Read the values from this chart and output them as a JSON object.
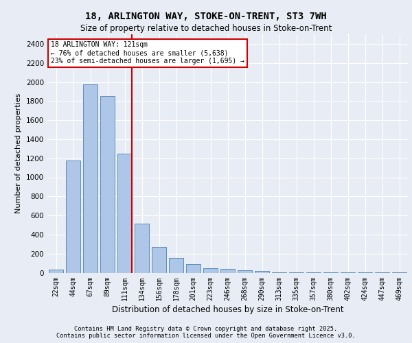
{
  "title1": "18, ARLINGTON WAY, STOKE-ON-TRENT, ST3 7WH",
  "title2": "Size of property relative to detached houses in Stoke-on-Trent",
  "xlabel": "Distribution of detached houses by size in Stoke-on-Trent",
  "ylabel": "Number of detached properties",
  "categories": [
    "22sqm",
    "44sqm",
    "67sqm",
    "89sqm",
    "111sqm",
    "134sqm",
    "156sqm",
    "178sqm",
    "201sqm",
    "223sqm",
    "246sqm",
    "268sqm",
    "290sqm",
    "313sqm",
    "335sqm",
    "357sqm",
    "380sqm",
    "402sqm",
    "424sqm",
    "447sqm",
    "469sqm"
  ],
  "values": [
    30,
    1175,
    1975,
    1855,
    1245,
    515,
    270,
    155,
    90,
    50,
    40,
    25,
    15,
    5,
    5,
    2,
    2,
    2,
    2,
    2,
    2
  ],
  "bar_color": "#aec6e8",
  "bar_edge_color": "#5b8db8",
  "vline_index": 4,
  "vline_color": "#cc0000",
  "annotation_title": "18 ARLINGTON WAY: 121sqm",
  "annotation_line1": "← 76% of detached houses are smaller (5,638)",
  "annotation_line2": "23% of semi-detached houses are larger (1,695) →",
  "annotation_box_color": "#cc0000",
  "ylim": [
    0,
    2500
  ],
  "yticks": [
    0,
    200,
    400,
    600,
    800,
    1000,
    1200,
    1400,
    1600,
    1800,
    2000,
    2200,
    2400
  ],
  "background_color": "#e8edf5",
  "grid_color": "#ffffff",
  "footer1": "Contains HM Land Registry data © Crown copyright and database right 2025.",
  "footer2": "Contains public sector information licensed under the Open Government Licence v3.0."
}
